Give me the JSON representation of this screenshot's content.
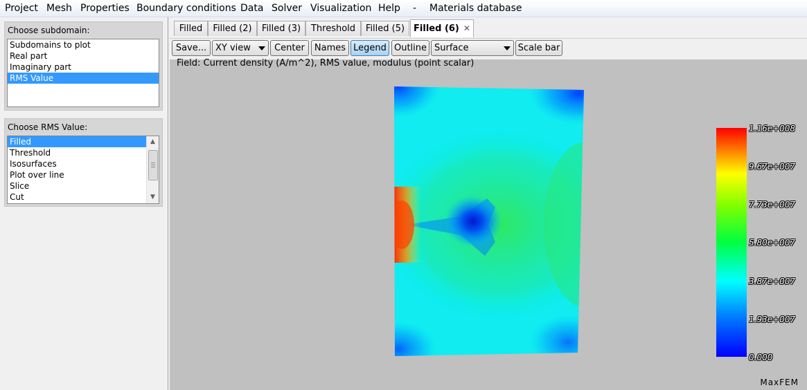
{
  "menu": [
    "Project",
    "Mesh",
    "Properties",
    "Boundary conditions",
    "Data",
    "Solver",
    "Visualization",
    "Help",
    "-",
    "Materials database"
  ],
  "subdomain": {
    "title": "Choose subdomain:",
    "items": [
      "Subdomains to plot",
      "Real part",
      "Imaginary part",
      "RMS Value"
    ],
    "selected": "RMS Value"
  },
  "rms": {
    "title": "Choose RMS Value:",
    "items": [
      "Filled",
      "Threshold",
      "Isosurfaces",
      "Plot over line",
      "Slice",
      "Cut"
    ],
    "selected": "Filled"
  },
  "tabs": [
    "Filled",
    "Filled (2)",
    "Filled (3)",
    "Threshold",
    "Filled (5)",
    "Filled (6)"
  ],
  "active_tab": "Filled (6)",
  "toolbar": {
    "save": "Save...",
    "view": "XY view",
    "center": "Center",
    "names": "Names",
    "legend": "Legend",
    "outline": "Outline",
    "mode": "Surface",
    "scalebar": "Scale bar"
  },
  "field_label": "Field: Current density (A/m^2), RMS value, modulus (point scalar)",
  "legend_ticks": [
    "1.16e+008",
    "9.67e+007",
    "7.73e+007",
    "5.80e+007",
    "3.87e+007",
    "1.93e+007",
    "0.000"
  ],
  "watermark": "MaxFEM",
  "colors": {
    "selection": "#3399ff",
    "viewport": "#c0c0c0"
  },
  "icons": {
    "tab_close": "close-icon",
    "combo_arrow": "chevron-down-icon",
    "scroll_up": "arrow-up-icon",
    "scroll_down": "arrow-down-icon"
  }
}
